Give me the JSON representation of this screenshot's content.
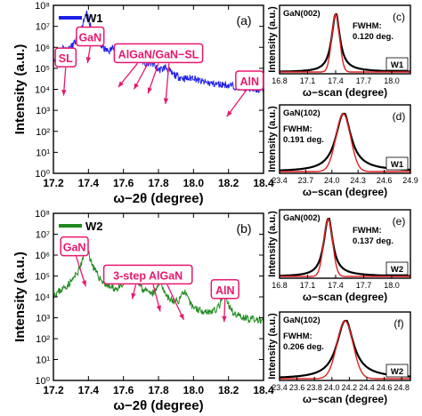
{
  "figure": {
    "background": "#ffffff"
  },
  "chart_data": [
    {
      "id": "a",
      "type": "line",
      "panel_label": "(a)",
      "xlabel": "ω−2θ (degree)",
      "ylabel": "Intensity (a.u.)",
      "xlim": [
        17.2,
        18.4
      ],
      "ylim_log10": [
        0,
        8
      ],
      "log_scale_y": true,
      "xticks": [
        "17.2",
        "17.4",
        "17.6",
        "17.8",
        "18.0",
        "18.2",
        "18.4"
      ],
      "yticks": [
        "10⁰",
        "10¹",
        "10²",
        "10³",
        "10⁴",
        "10⁵",
        "10⁶",
        "10⁷",
        "10⁸"
      ],
      "legend": {
        "label": "W1",
        "position": "top-left"
      },
      "series": [
        {
          "name": "W1",
          "color": "#1f1fe6",
          "baseline_log10": 2.5,
          "noise": 0.35,
          "seed": 11,
          "peaks": [
            {
              "x": 17.255,
              "log10_height": 3.55,
              "width": 0.015
            },
            {
              "x": 17.39,
              "log10_height": 5.35,
              "width": 0.015
            },
            {
              "x": 17.55,
              "log10_height": 3.8,
              "width": 0.015
            },
            {
              "x": 17.62,
              "log10_height": 3.45,
              "width": 0.017
            },
            {
              "x": 17.69,
              "log10_height": 3.25,
              "width": 0.017
            },
            {
              "x": 17.76,
              "log10_height": 2.8,
              "width": 0.018
            },
            {
              "x": 17.84,
              "log10_height": 2.55,
              "width": 0.02
            },
            {
              "x": 18.0,
              "log10_height": 1.9,
              "width": 0.015
            },
            {
              "x": 18.18,
              "log10_height": 1.05,
              "width": 0.025
            },
            {
              "x": 18.23,
              "log10_height": 0.7,
              "width": 0.02
            }
          ]
        }
      ],
      "annotations": [
        {
          "text": "GaN",
          "x": 17.41,
          "y_log10": 6.5
        },
        {
          "text": "SL",
          "x": 17.27,
          "y_log10": 5.5
        },
        {
          "text": "AlGaN/GaN−SL",
          "x": 17.8,
          "y_log10": 5.7
        },
        {
          "text": "AlN",
          "x": 18.32,
          "y_log10": 4.4
        }
      ]
    },
    {
      "id": "b",
      "type": "line",
      "panel_label": "(b)",
      "xlabel": "ω−2θ (degree)",
      "ylabel": "Intensity (a.u.)",
      "xlim": [
        17.2,
        18.4
      ],
      "ylim_log10": [
        0,
        8
      ],
      "log_scale_y": true,
      "xticks": [
        "17.2",
        "17.4",
        "17.6",
        "17.8",
        "18.0",
        "18.2",
        "18.4"
      ],
      "yticks": [
        "10⁰",
        "10¹",
        "10²",
        "10³",
        "10⁴",
        "10⁵",
        "10⁶",
        "10⁷",
        "10⁸"
      ],
      "legend": {
        "label": "W2",
        "position": "top-left"
      },
      "series": [
        {
          "name": "W2",
          "color": "#1f8a1f",
          "baseline_log10": 1.4,
          "noise": 0.35,
          "seed": 23,
          "peaks": [
            {
              "x": 17.39,
              "log10_height": 4.1,
              "width": 0.015
            },
            {
              "x": 17.65,
              "log10_height": 3.1,
              "width": 0.02
            },
            {
              "x": 17.81,
              "log10_height": 2.5,
              "width": 0.015
            },
            {
              "x": 17.945,
              "log10_height": 2.0,
              "width": 0.015
            },
            {
              "x": 18.175,
              "log10_height": 1.8,
              "width": 0.016
            }
          ]
        }
      ],
      "annotations": [
        {
          "text": "GaN",
          "x": 17.32,
          "y_log10": 6.4
        },
        {
          "text": "3-step AlGaN",
          "x": 17.74,
          "y_log10": 5.05
        },
        {
          "text": "AlN",
          "x": 18.18,
          "y_log10": 4.35
        }
      ]
    },
    {
      "id": "c",
      "type": "line",
      "panel_label": "(c)",
      "title": "GaN(002)",
      "xlabel": "ω−scan (degree)",
      "ylabel": "Intensity (a.u.)",
      "xlim": [
        16.8,
        18.2
      ],
      "xticks": [
        "16.8",
        "17.1",
        "17.4",
        "17.7",
        "18.0"
      ],
      "fwhm_text": "FWHM:",
      "fwhm_value": "0.120 deg.",
      "wafer": "W1",
      "center": 17.4,
      "sigma": 0.055,
      "fit_sigma": 0.05,
      "series": [
        {
          "name": "W1",
          "color": "#000000"
        },
        {
          "name": "fit",
          "color": "#e02020"
        }
      ]
    },
    {
      "id": "d",
      "type": "line",
      "panel_label": "(d)",
      "title": "GaN(102)",
      "xlabel": "ω−scan (degree)",
      "ylabel": "Intensity (a.u.)",
      "xlim": [
        23.4,
        24.9
      ],
      "xticks": [
        "23.4",
        "23.7",
        "24.0",
        "24.3",
        "24.6",
        "24.9"
      ],
      "fwhm_text": "FWHM:",
      "fwhm_value": "0.191 deg.",
      "wafer": "W1",
      "center": 24.13,
      "sigma": 0.11,
      "fit_sigma": 0.1,
      "series": [
        {
          "name": "W1",
          "color": "#000000"
        },
        {
          "name": "fit",
          "color": "#e02020"
        }
      ]
    },
    {
      "id": "e",
      "type": "line",
      "panel_label": "(e)",
      "title": "GaN(002)",
      "xlabel": "ω−scan (degree)",
      "ylabel": "Intensity (a.u.)",
      "xlim": [
        16.8,
        18.2
      ],
      "xticks": [
        "16.8",
        "17.1",
        "17.4",
        "17.7",
        "18.0"
      ],
      "fwhm_text": "FWHM:",
      "fwhm_value": "0.137 deg.",
      "wafer": "W2",
      "center": 17.32,
      "sigma": 0.06,
      "fit_sigma": 0.057,
      "series": [
        {
          "name": "W2",
          "color": "#000000"
        },
        {
          "name": "fit",
          "color": "#e02020"
        }
      ]
    },
    {
      "id": "f",
      "type": "line",
      "panel_label": "(f)",
      "title": "GaN(102)",
      "xlabel": "ω−scan (degree)",
      "ylabel": "Intensity (a.u.)",
      "xlim": [
        23.4,
        24.9
      ],
      "xticks": [
        "23.4",
        "23.6",
        "23.8",
        "24.0",
        "24.2",
        "24.4",
        "24.6",
        "24.8"
      ],
      "fwhm_text": "FWHM:",
      "fwhm_value": "0.206 deg.",
      "wafer": "W2",
      "center": 24.15,
      "sigma": 0.12,
      "fit_sigma": 0.11,
      "series": [
        {
          "name": "W2",
          "color": "#000000"
        },
        {
          "name": "fit",
          "color": "#e02020"
        }
      ]
    }
  ],
  "colors": {
    "annotation": "#e8186e"
  }
}
